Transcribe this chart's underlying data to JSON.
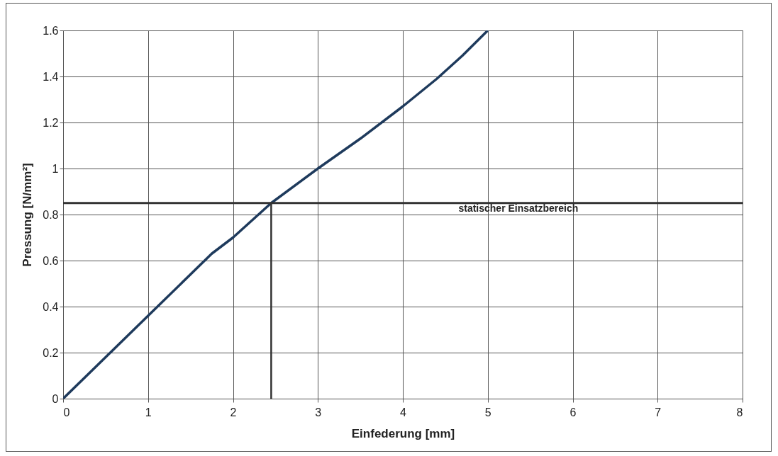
{
  "chart_data": {
    "type": "line",
    "xlabel": "Einfederung [mm]",
    "ylabel": "Pressung [N/mm²]",
    "xlim": [
      0,
      8
    ],
    "xticks": [
      0,
      1,
      2,
      3,
      4,
      5,
      6,
      7,
      8
    ],
    "ylim": [
      0,
      1.6
    ],
    "yticks": [
      0,
      {
        "value": 0.2,
        "label": "0.2"
      },
      {
        "value": 0.4,
        "label": "0.4"
      },
      {
        "value": 0.6,
        "label": "0.6"
      },
      {
        "value": 0.8,
        "label": "0.8"
      },
      1,
      {
        "value": 1.2,
        "label": "1.2"
      },
      {
        "value": 1.4,
        "label": "1.4"
      },
      {
        "value": 1.6,
        "label": "1.6"
      }
    ],
    "grid": true,
    "series": [
      {
        "color": "#1e3a5c",
        "x": [
          0,
          0.5,
          1,
          1.5,
          1.75,
          2,
          2.45,
          3,
          3.5,
          4,
          4.4,
          4.7,
          5
        ],
        "values": [
          0,
          0.18,
          0.36,
          0.54,
          0.63,
          0.7,
          0.85,
          1.0,
          1.13,
          1.27,
          1.39,
          1.49,
          1.6
        ]
      },
      {
        "color": "#333333",
        "x": [
          2.45,
          2.45
        ],
        "values": [
          0,
          0.85
        ]
      }
    ],
    "ref_lines": [
      {
        "axis": "y",
        "value": 0.85,
        "label": "statischer Einsatzbereich",
        "color": "#333333"
      }
    ]
  }
}
